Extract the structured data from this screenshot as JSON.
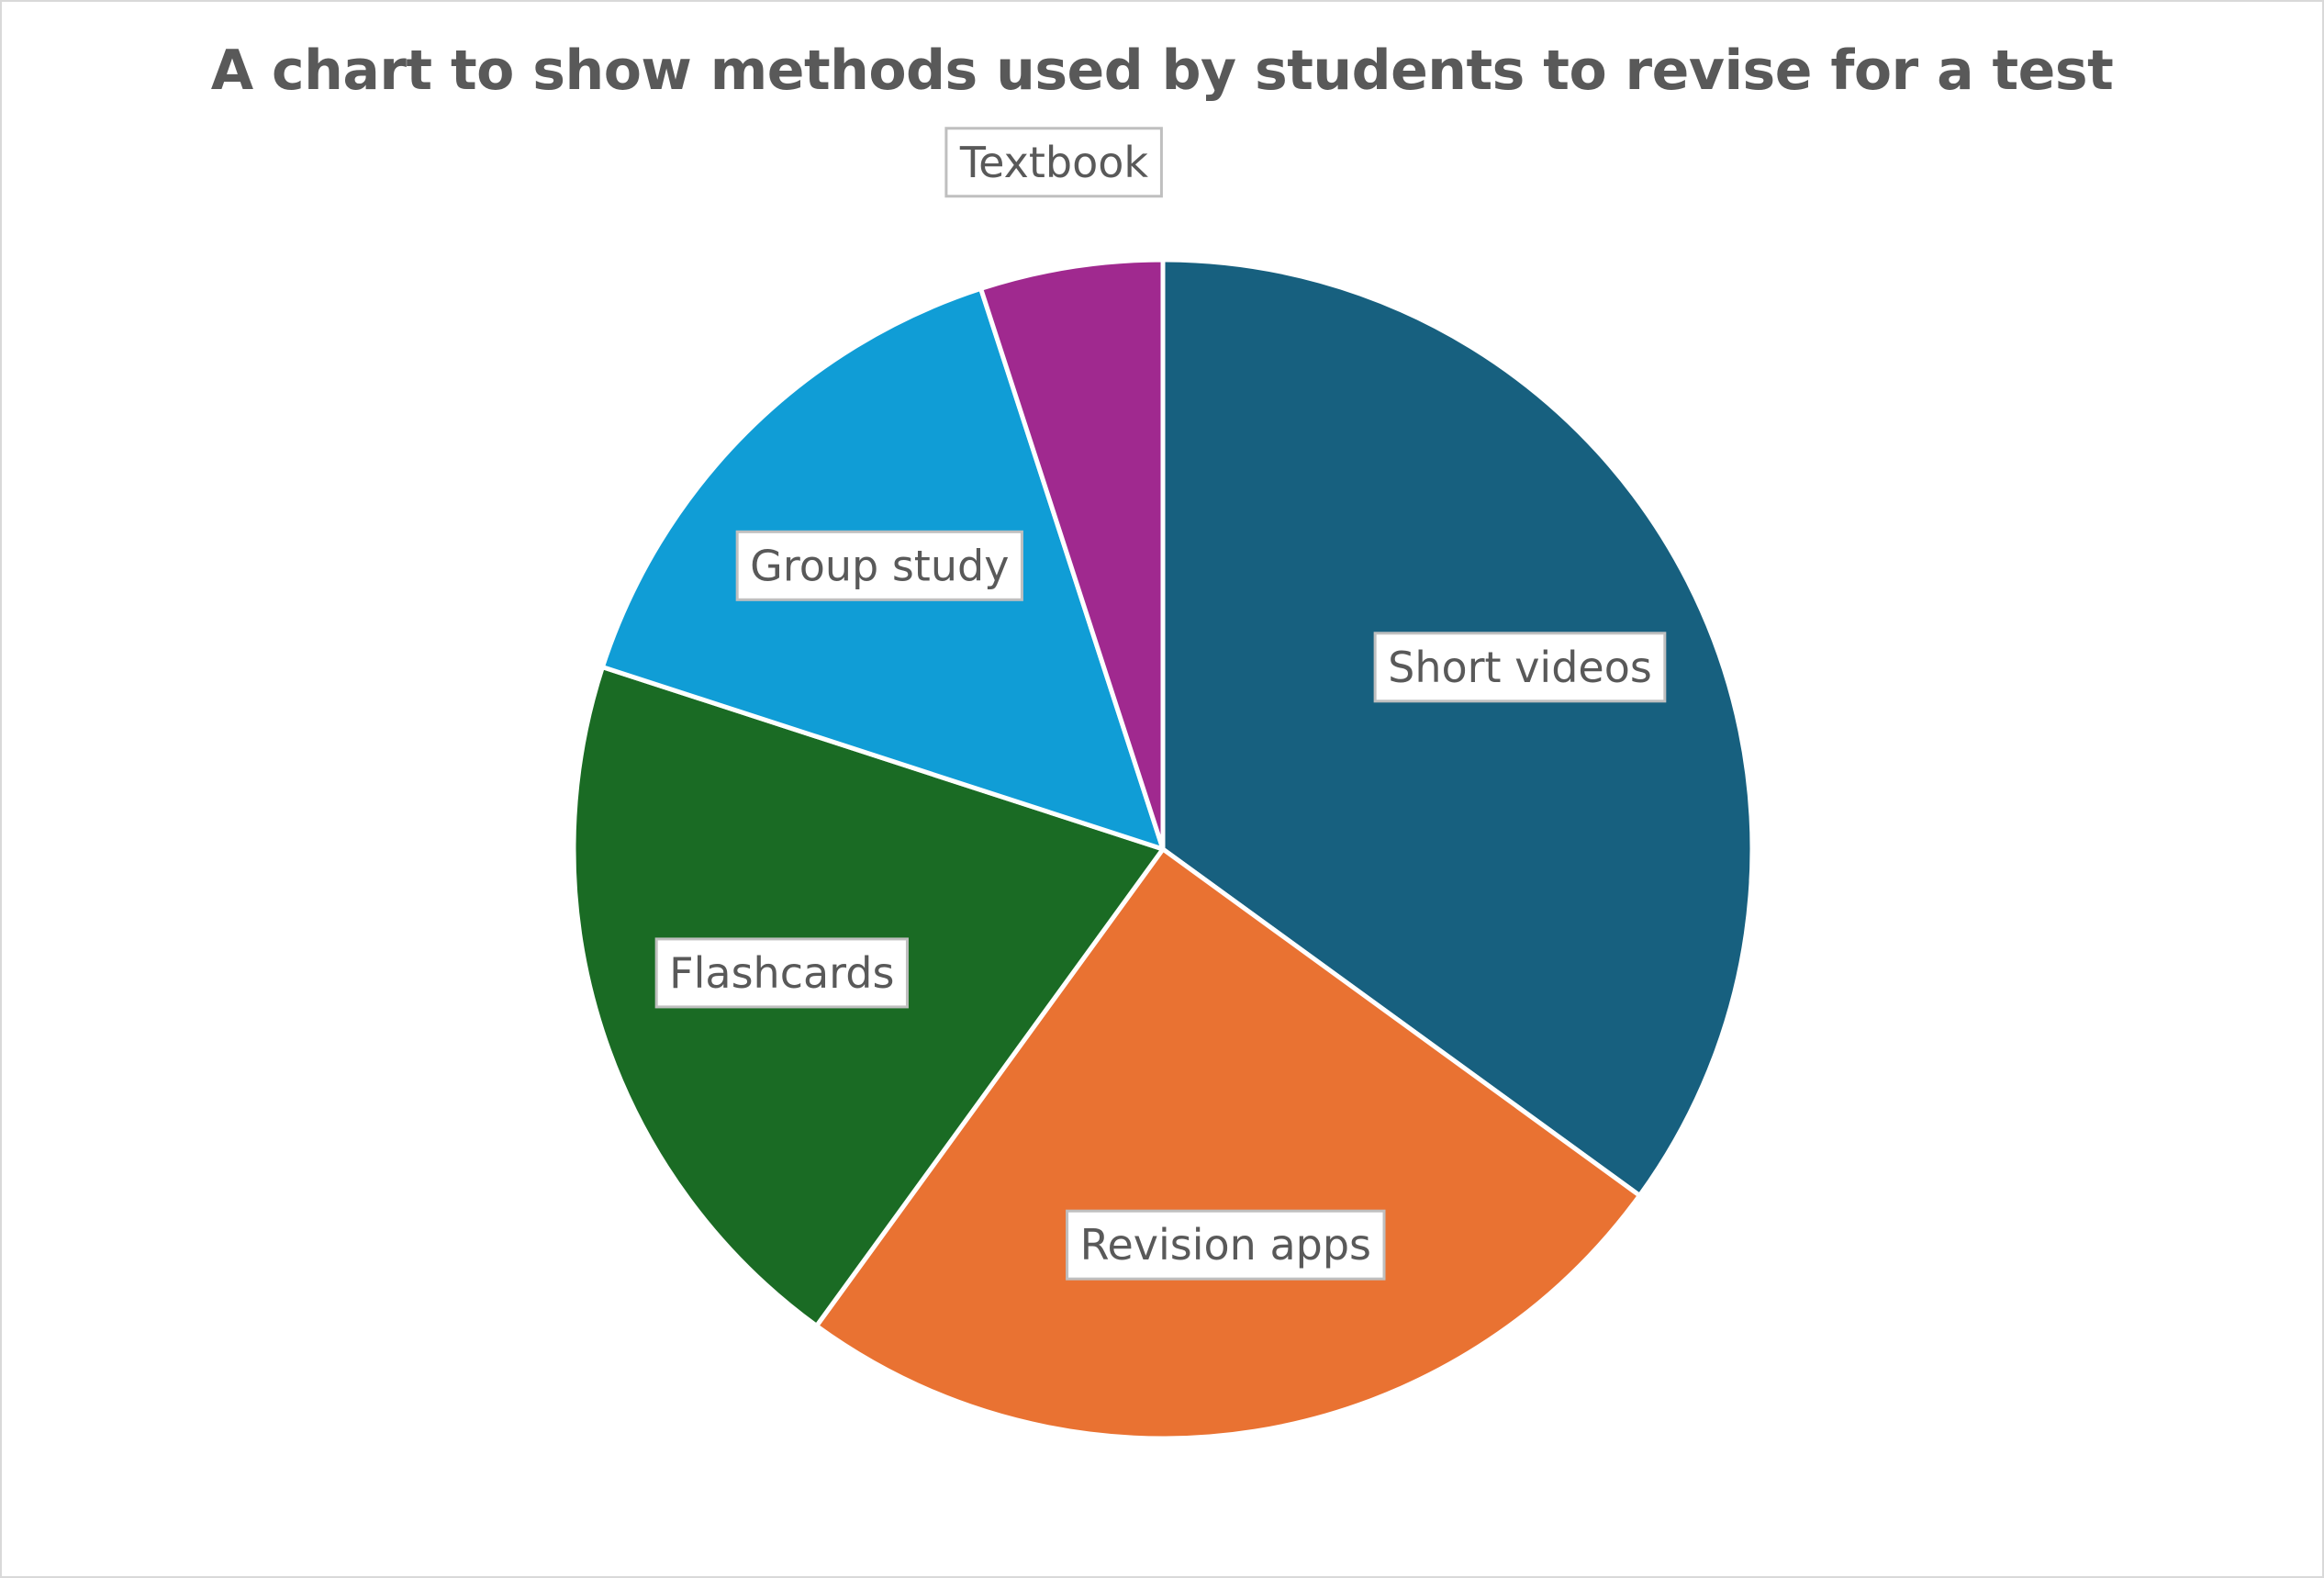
{
  "chart_data": {
    "type": "pie",
    "title": "A chart to show methods used by students to revise for a test",
    "categories": [
      "Short videos",
      "Revision apps",
      "Flashcards",
      "Group study",
      "Textbook"
    ],
    "values": [
      35,
      25,
      20,
      15,
      5
    ],
    "colors": [
      "#17607f",
      "#e97232",
      "#1a6b24",
      "#109dd6",
      "#a0298f"
    ],
    "start_angle_deg": 0,
    "direction": "clockwise",
    "legend": "none",
    "data_labels": "category"
  }
}
